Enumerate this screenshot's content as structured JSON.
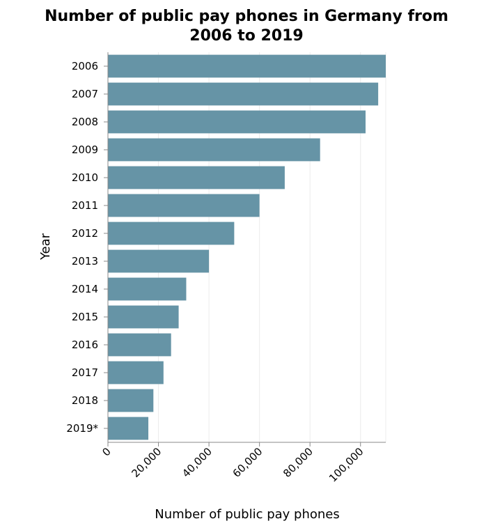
{
  "chart_data": {
    "type": "bar",
    "orientation": "horizontal",
    "title": "Number of public pay phones in Germany from 2006 to 2019",
    "xlabel": "Number of public pay phones",
    "ylabel": "Year",
    "categories": [
      "2006",
      "2007",
      "2008",
      "2009",
      "2010",
      "2011",
      "2012",
      "2013",
      "2014",
      "2015",
      "2016",
      "2017",
      "2018",
      "2019*"
    ],
    "values": [
      110000,
      107000,
      102000,
      84000,
      70000,
      60000,
      50000,
      40000,
      31000,
      28000,
      25000,
      22000,
      18000,
      16000
    ],
    "xlim": [
      0,
      110000
    ],
    "xticks": [
      0,
      20000,
      40000,
      60000,
      80000,
      100000
    ],
    "xtick_labels": [
      "0",
      "20,000",
      "40,000",
      "60,000",
      "80,000",
      "100,000"
    ],
    "grid": true,
    "bar_color": "#6694a6"
  }
}
